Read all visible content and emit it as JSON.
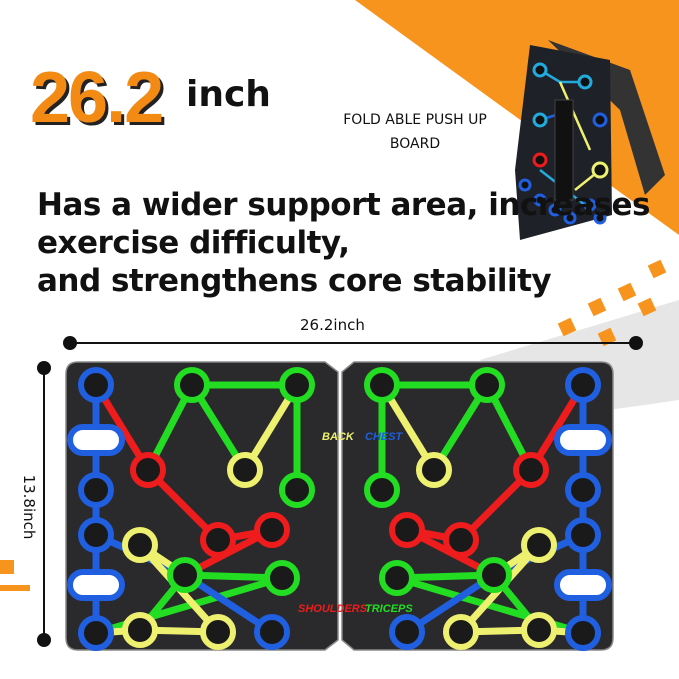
{
  "headline": {
    "value": "26.2",
    "unit": "inch"
  },
  "inset_caption": "FOLD ABLE PUSH UP BOARD",
  "description": [
    "Has a wider support area, increases",
    "exercise difficulty,",
    "and strengthens core stability"
  ],
  "dimensions": {
    "width": "26.2inch",
    "height": "13.8inch"
  },
  "zones": {
    "back": "BACK",
    "chest": "CHEST",
    "shoulders": "SHOULDERS",
    "triceps": "TRICEPS"
  },
  "colors": {
    "accent": "#f28a14",
    "board": "#2a2a2c",
    "blue": "#1f5fe0",
    "green": "#22dd22",
    "red": "#ee1c1c",
    "yellow": "#eef070",
    "gray": "#d8d8d8"
  }
}
